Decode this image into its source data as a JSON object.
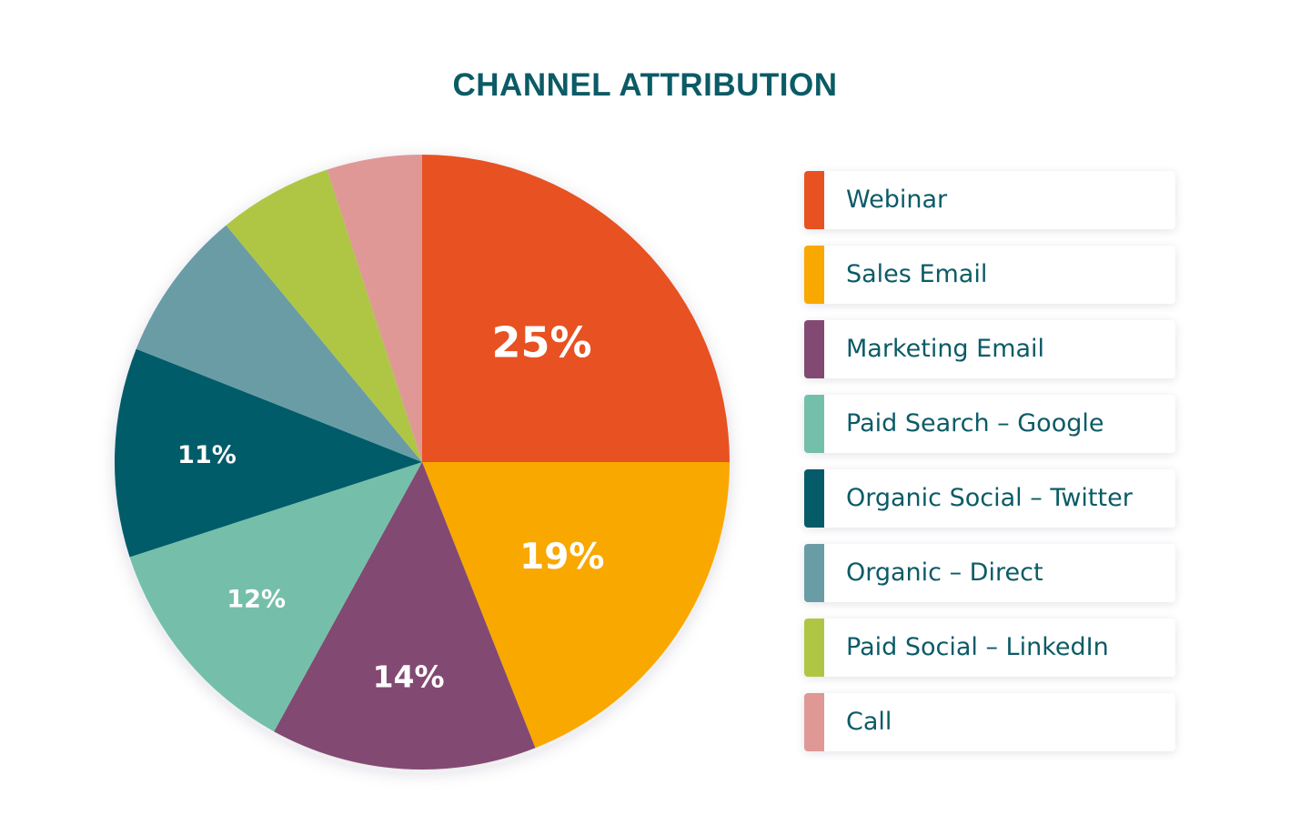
{
  "chart_data": {
    "type": "pie",
    "title": "CHANNEL ATTRIBUTION",
    "start_angle": 0,
    "direction": "clockwise",
    "slices": [
      {
        "label": "Webinar",
        "value": 25,
        "display": "25%",
        "color": "#e85122",
        "label_size": 46
      },
      {
        "label": "Sales Email",
        "value": 19,
        "display": "19%",
        "color": "#f9a800",
        "label_size": 39
      },
      {
        "label": "Marketing Email",
        "value": 14,
        "display": "14%",
        "color": "#824a72",
        "label_size": 33
      },
      {
        "label": "Paid Search – Google",
        "value": 12,
        "display": "12%",
        "color": "#74bfaa",
        "label_size": 27
      },
      {
        "label": "Organic Social – Twitter",
        "value": 11,
        "display": "11%",
        "color": "#065b69",
        "label_size": 27
      },
      {
        "label": "Organic – Direct",
        "value": 8,
        "display": "",
        "color": "#6a9ca6",
        "label_size": 0
      },
      {
        "label": "Paid Social – LinkedIn",
        "value": 6,
        "display": "",
        "color": "#afc645",
        "label_size": 0
      },
      {
        "label": "Call",
        "value": 5,
        "display": "",
        "color": "#df9896",
        "label_size": 0
      }
    ],
    "legend_position": "right"
  }
}
